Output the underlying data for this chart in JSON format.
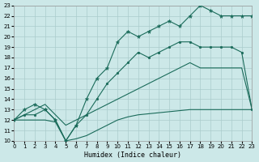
{
  "xlabel": "Humidex (Indice chaleur)",
  "xlim": [
    0,
    23
  ],
  "ylim": [
    10,
    23
  ],
  "bg_color": "#cce8e8",
  "grid_color": "#aacccc",
  "line_color": "#1a6b5a",
  "line1_x": [
    0,
    1,
    2,
    3,
    4,
    5,
    6,
    7,
    8,
    9,
    10,
    11,
    12,
    13,
    14,
    15,
    16,
    17,
    18,
    19,
    20,
    21,
    22,
    23
  ],
  "line1_y": [
    12.0,
    13.0,
    13.5,
    13.0,
    12.0,
    10.0,
    11.5,
    14.0,
    16.0,
    17.0,
    19.5,
    20.5,
    20.0,
    20.5,
    21.0,
    21.5,
    21.0,
    22.0,
    23.0,
    22.5,
    22.0,
    22.0,
    22.0,
    22.0
  ],
  "line2_x": [
    0,
    1,
    2,
    3,
    4,
    5,
    6,
    7,
    8,
    9,
    10,
    11,
    12,
    13,
    14,
    15,
    16,
    17,
    18,
    19,
    20,
    21,
    22,
    23
  ],
  "line2_y": [
    12.0,
    12.5,
    12.5,
    13.0,
    12.0,
    10.0,
    11.5,
    12.5,
    14.0,
    15.5,
    16.5,
    17.5,
    18.5,
    18.0,
    18.5,
    19.0,
    19.5,
    19.5,
    19.0,
    19.0,
    19.0,
    19.0,
    18.5,
    13.0
  ],
  "line3_x": [
    0,
    1,
    2,
    3,
    4,
    5,
    6,
    7,
    8,
    9,
    10,
    11,
    12,
    13,
    14,
    15,
    16,
    17,
    18,
    22,
    23
  ],
  "line3_y": [
    12.0,
    12.5,
    13.0,
    13.5,
    12.5,
    11.5,
    12.0,
    12.5,
    13.0,
    13.5,
    14.0,
    14.5,
    15.0,
    15.5,
    16.0,
    16.5,
    17.0,
    17.5,
    17.0,
    17.0,
    13.0
  ],
  "line4_x": [
    0,
    1,
    2,
    3,
    4,
    5,
    6,
    7,
    8,
    9,
    10,
    11,
    12,
    13,
    14,
    15,
    16,
    17,
    18,
    19,
    20,
    21,
    22,
    23
  ],
  "line4_y": [
    12.0,
    12.0,
    12.0,
    12.0,
    11.8,
    10.0,
    10.2,
    10.5,
    11.0,
    11.5,
    12.0,
    12.3,
    12.5,
    12.6,
    12.7,
    12.8,
    12.9,
    13.0,
    13.0,
    13.0,
    13.0,
    13.0,
    13.0,
    13.0
  ],
  "xticks": [
    0,
    1,
    2,
    3,
    4,
    5,
    6,
    7,
    8,
    9,
    10,
    11,
    12,
    13,
    14,
    15,
    16,
    17,
    18,
    19,
    20,
    21,
    22,
    23
  ],
  "yticks": [
    10,
    11,
    12,
    13,
    14,
    15,
    16,
    17,
    18,
    19,
    20,
    21,
    22,
    23
  ]
}
